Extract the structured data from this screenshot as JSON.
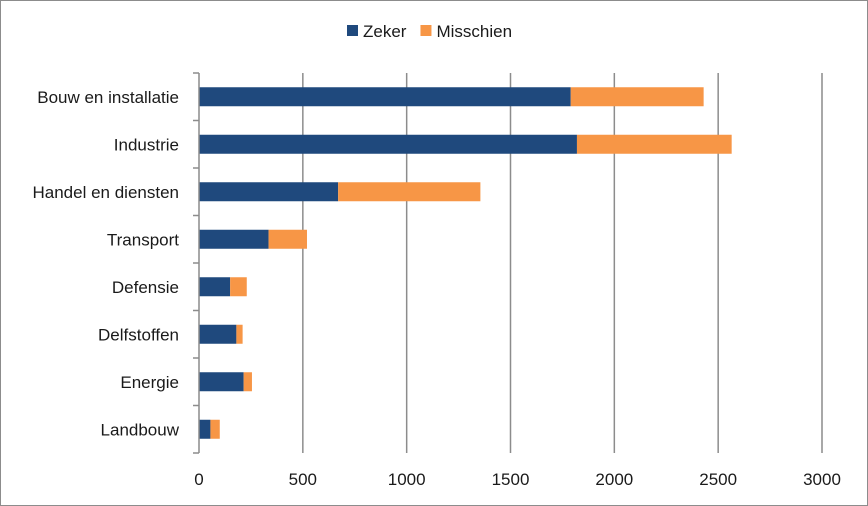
{
  "chart_data": {
    "type": "bar",
    "orientation": "horizontal",
    "stacked": true,
    "categories": [
      "Bouw en installatie",
      "Industrie",
      "Handel en diensten",
      "Transport",
      "Defensie",
      "Delfstoffen",
      "Energie",
      "Landbouw"
    ],
    "series": [
      {
        "name": "Zeker",
        "color": "#1f497d",
        "values": [
          1790,
          1820,
          670,
          335,
          150,
          180,
          215,
          55
        ]
      },
      {
        "name": "Misschien",
        "color": "#f79646",
        "values": [
          640,
          745,
          685,
          185,
          80,
          30,
          40,
          45
        ]
      }
    ],
    "title": "",
    "xlabel": "",
    "ylabel": "",
    "xlim": [
      0,
      3000
    ],
    "xticks": [
      0,
      500,
      1000,
      1500,
      2000,
      2500,
      3000
    ],
    "grid": "vertical",
    "legend_position": "top-center",
    "gridline_color": "#8c8c8c"
  }
}
